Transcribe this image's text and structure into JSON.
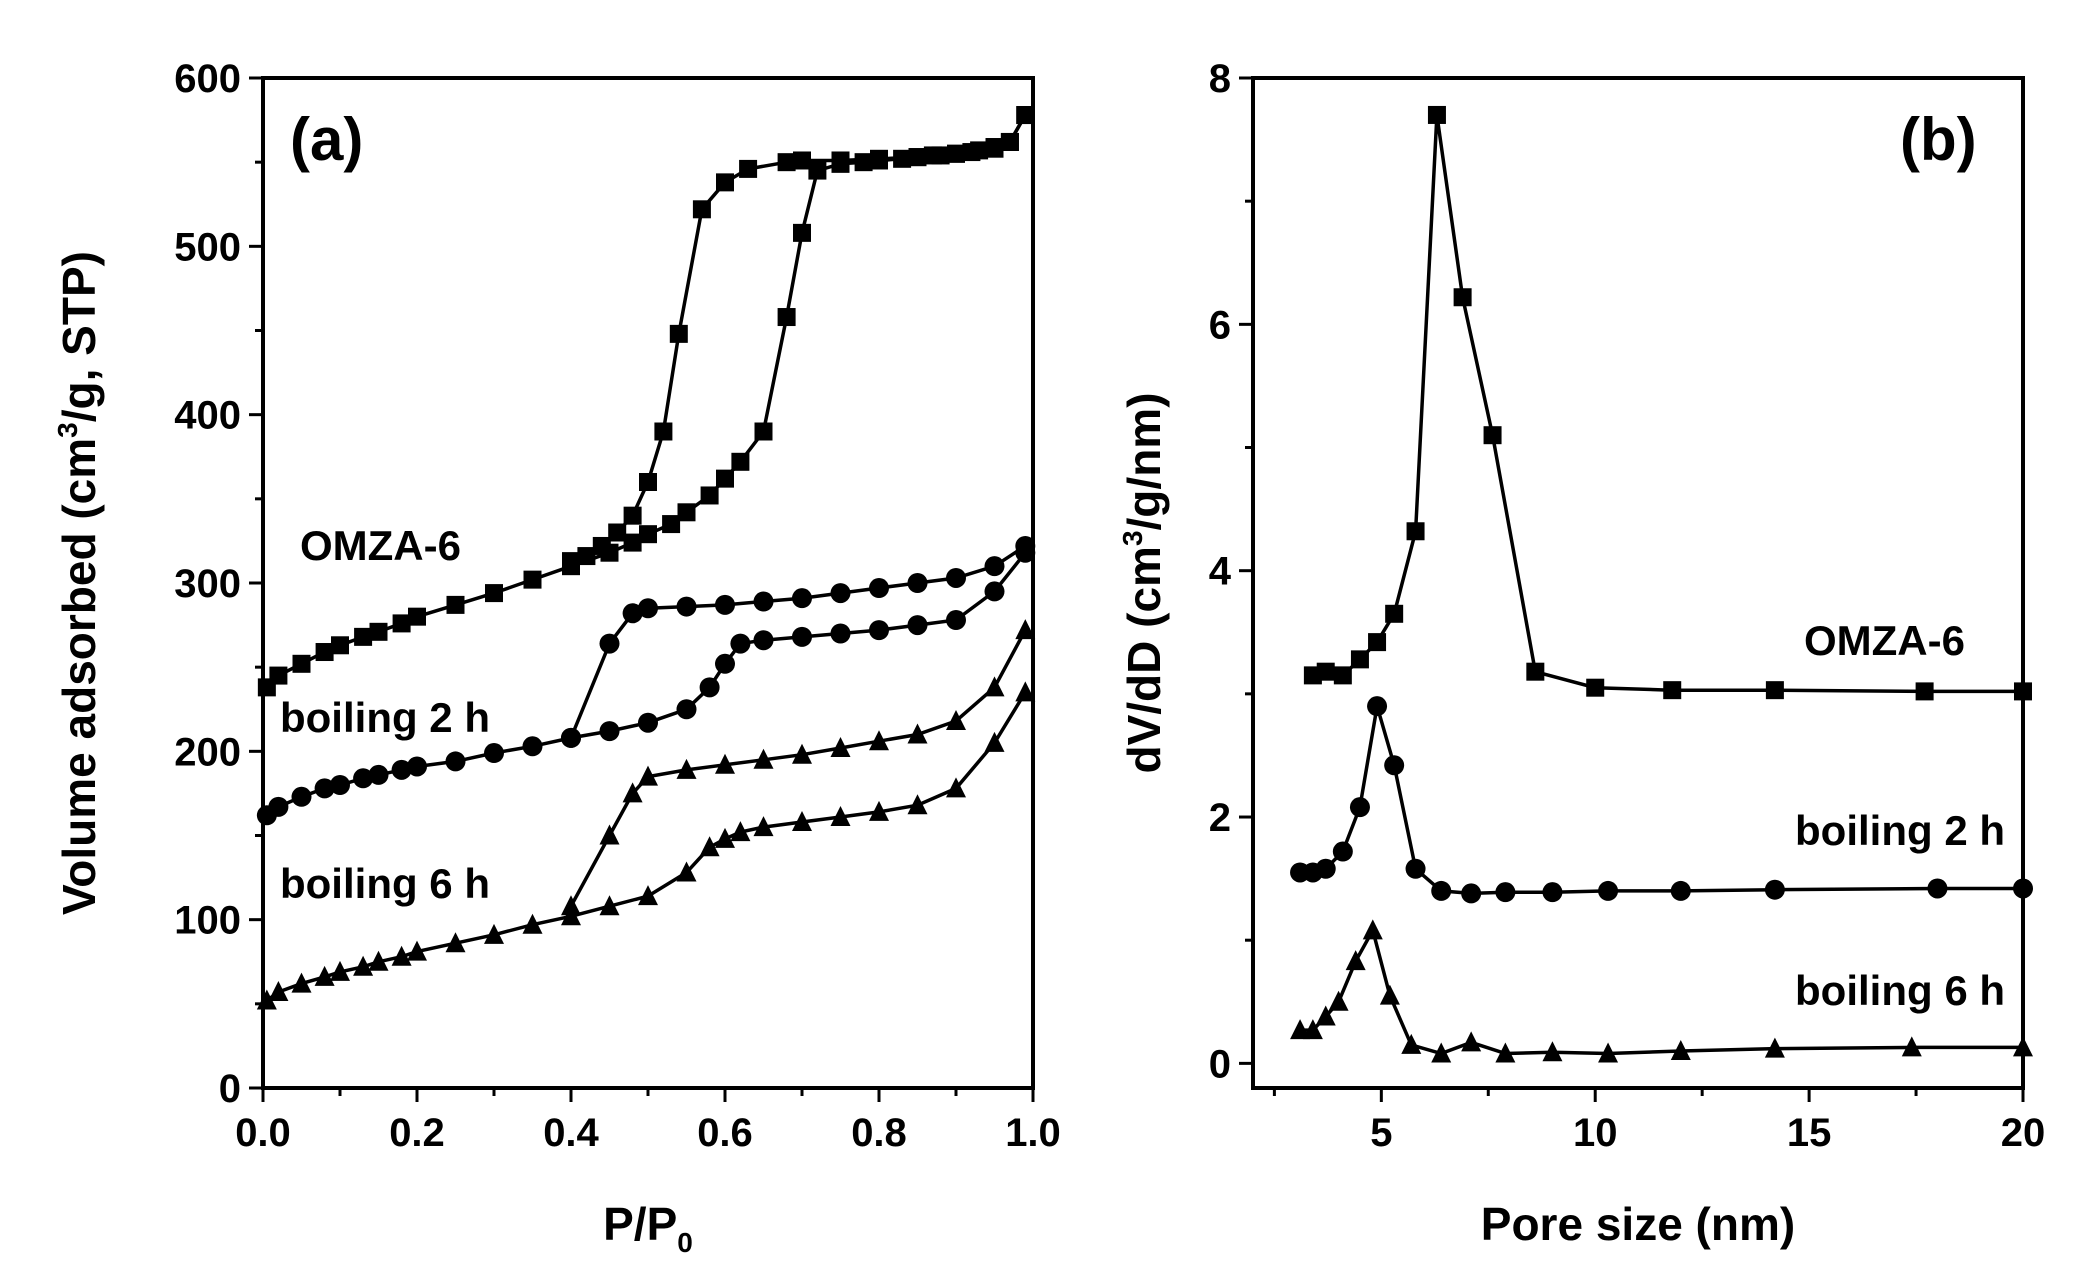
{
  "chart_data": [
    {
      "type": "line",
      "panel_label": "(a)",
      "xlabel_main": "P/P",
      "xlabel_sub": "0",
      "ylabel_part1": "Volume adsorbed (cm",
      "ylabel_sup": "3",
      "ylabel_part2": "/g, STP)",
      "xlim": [
        0,
        1.0
      ],
      "ylim": [
        0,
        600
      ],
      "x_ticks": [
        "0.0",
        "0.2",
        "0.4",
        "0.6",
        "0.8",
        "1.0"
      ],
      "y_ticks": [
        "0",
        "100",
        "200",
        "300",
        "400",
        "500",
        "600"
      ],
      "series": [
        {
          "name": "OMZA-6",
          "marker": "square",
          "branches": [
            {
              "x": [
                0.005,
                0.02,
                0.05,
                0.08,
                0.1,
                0.13,
                0.15,
                0.18,
                0.2,
                0.25,
                0.3,
                0.35,
                0.4,
                0.45,
                0.48,
                0.5,
                0.53,
                0.55,
                0.58,
                0.6,
                0.62,
                0.65,
                0.68,
                0.7,
                0.72,
                0.75,
                0.78,
                0.8,
                0.83,
                0.85,
                0.88,
                0.9,
                0.93,
                0.95,
                0.97,
                0.99
              ],
              "y": [
                238,
                245,
                252,
                259,
                263,
                268,
                271,
                276,
                280,
                287,
                294,
                302,
                310,
                318,
                324,
                329,
                335,
                342,
                352,
                362,
                372,
                390,
                458,
                508,
                545,
                549,
                550,
                551,
                552,
                553,
                554,
                555,
                557,
                559,
                562,
                578
              ]
            },
            {
              "x": [
                0.99,
                0.97,
                0.95,
                0.92,
                0.9,
                0.87,
                0.85,
                0.8,
                0.75,
                0.7,
                0.68,
                0.63,
                0.6,
                0.57,
                0.54,
                0.52,
                0.5,
                0.48,
                0.46,
                0.44,
                0.42,
                0.4
              ],
              "y": [
                578,
                562,
                558,
                556,
                555,
                554,
                553,
                552,
                551,
                551,
                550,
                546,
                538,
                522,
                448,
                390,
                360,
                340,
                330,
                322,
                316,
                313
              ]
            }
          ]
        },
        {
          "name": "boiling 2 h",
          "marker": "circle",
          "branches": [
            {
              "x": [
                0.005,
                0.02,
                0.05,
                0.08,
                0.1,
                0.13,
                0.15,
                0.18,
                0.2,
                0.25,
                0.3,
                0.35,
                0.4,
                0.45,
                0.5,
                0.55,
                0.58,
                0.6,
                0.62,
                0.65,
                0.7,
                0.75,
                0.8,
                0.85,
                0.9,
                0.95,
                0.99
              ],
              "y": [
                162,
                167,
                173,
                178,
                180,
                184,
                186,
                189,
                191,
                194,
                199,
                203,
                208,
                212,
                217,
                225,
                238,
                252,
                264,
                266,
                268,
                270,
                272,
                275,
                278,
                295,
                318
              ]
            },
            {
              "x": [
                0.99,
                0.95,
                0.9,
                0.85,
                0.8,
                0.75,
                0.7,
                0.65,
                0.6,
                0.55,
                0.5,
                0.48,
                0.45,
                0.4
              ],
              "y": [
                322,
                310,
                303,
                300,
                297,
                294,
                291,
                289,
                287,
                286,
                285,
                282,
                264,
                208
              ]
            }
          ]
        },
        {
          "name": "boiling 6 h",
          "marker": "triangle",
          "branches": [
            {
              "x": [
                0.005,
                0.02,
                0.05,
                0.08,
                0.1,
                0.13,
                0.15,
                0.18,
                0.2,
                0.25,
                0.3,
                0.35,
                0.4,
                0.45,
                0.5,
                0.55,
                0.58,
                0.6,
                0.62,
                0.65,
                0.7,
                0.75,
                0.8,
                0.85,
                0.9,
                0.95,
                0.99
              ],
              "y": [
                52,
                57,
                62,
                66,
                69,
                72,
                75,
                78,
                81,
                86,
                91,
                97,
                102,
                108,
                114,
                128,
                143,
                148,
                152,
                155,
                158,
                161,
                164,
                168,
                178,
                205,
                235
              ]
            },
            {
              "x": [
                0.99,
                0.95,
                0.9,
                0.85,
                0.8,
                0.75,
                0.7,
                0.65,
                0.6,
                0.55,
                0.5,
                0.48,
                0.45,
                0.4
              ],
              "y": [
                272,
                238,
                218,
                210,
                206,
                202,
                198,
                195,
                192,
                189,
                185,
                175,
                150,
                108
              ]
            }
          ]
        }
      ]
    },
    {
      "type": "line",
      "panel_label": "(b)",
      "xlabel": "Pore size (nm)",
      "ylabel_part1": "dV/dD (cm",
      "ylabel_sup": "3",
      "ylabel_part2": "/g/nm)",
      "xlim": [
        2,
        20
      ],
      "ylim": [
        -0.2,
        8
      ],
      "x_ticks": [
        "5",
        "10",
        "15",
        "20"
      ],
      "y_ticks": [
        "0",
        "2",
        "4",
        "6",
        "8"
      ],
      "series": [
        {
          "name": "OMZA-6",
          "marker": "square",
          "x": [
            3.4,
            3.7,
            4.1,
            4.5,
            4.9,
            5.3,
            5.8,
            6.3,
            6.9,
            7.6,
            8.6,
            10.0,
            11.8,
            14.2,
            17.7,
            20.0
          ],
          "y": [
            3.15,
            3.18,
            3.15,
            3.28,
            3.42,
            3.65,
            4.32,
            7.7,
            6.22,
            5.1,
            3.18,
            3.05,
            3.03,
            3.03,
            3.02,
            3.02
          ]
        },
        {
          "name": "boiling 2 h",
          "marker": "circle",
          "x": [
            3.1,
            3.4,
            3.7,
            4.1,
            4.5,
            4.9,
            5.3,
            5.8,
            6.4,
            7.1,
            7.9,
            9.0,
            10.3,
            12.0,
            14.2,
            18.0,
            20.0
          ],
          "y": [
            1.55,
            1.55,
            1.58,
            1.72,
            2.08,
            2.9,
            2.42,
            1.58,
            1.4,
            1.38,
            1.39,
            1.39,
            1.4,
            1.4,
            1.41,
            1.42,
            1.42
          ]
        },
        {
          "name": "boiling 6 h",
          "marker": "triangle",
          "x": [
            3.1,
            3.4,
            3.7,
            4.0,
            4.4,
            4.8,
            5.2,
            5.7,
            6.4,
            7.1,
            7.9,
            9.0,
            10.3,
            12.0,
            14.2,
            17.4,
            20.0
          ],
          "y": [
            0.27,
            0.27,
            0.38,
            0.5,
            0.83,
            1.08,
            0.55,
            0.15,
            0.08,
            0.17,
            0.08,
            0.09,
            0.08,
            0.1,
            0.12,
            0.13,
            0.13
          ]
        }
      ]
    }
  ]
}
